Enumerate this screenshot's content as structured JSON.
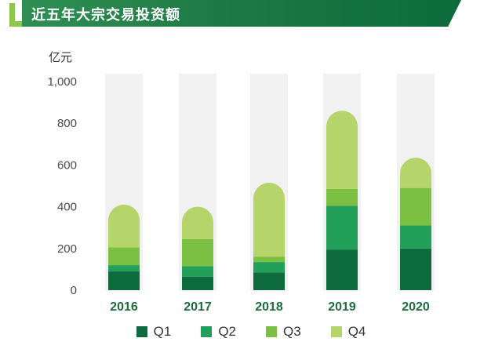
{
  "title": "近五年大宗交易投资额",
  "chart_data": {
    "type": "bar",
    "stacked": true,
    "unit": "亿元",
    "categories": [
      "2016",
      "2017",
      "2018",
      "2019",
      "2020"
    ],
    "series": [
      {
        "name": "Q1",
        "color": "#0e6b3e",
        "values": [
          90,
          65,
          85,
          195,
          200
        ]
      },
      {
        "name": "Q2",
        "color": "#22a05a",
        "values": [
          30,
          50,
          50,
          210,
          110
        ]
      },
      {
        "name": "Q3",
        "color": "#7bc043",
        "values": [
          85,
          130,
          25,
          80,
          180
        ]
      },
      {
        "name": "Q4",
        "color": "#b5d46a",
        "values": [
          205,
          155,
          355,
          375,
          145
        ]
      }
    ],
    "ylim": [
      0,
      1000
    ],
    "yticks": [
      "0",
      "200",
      "400",
      "600",
      "800",
      "1,000"
    ],
    "grid": false,
    "legend_position": "bottom"
  }
}
